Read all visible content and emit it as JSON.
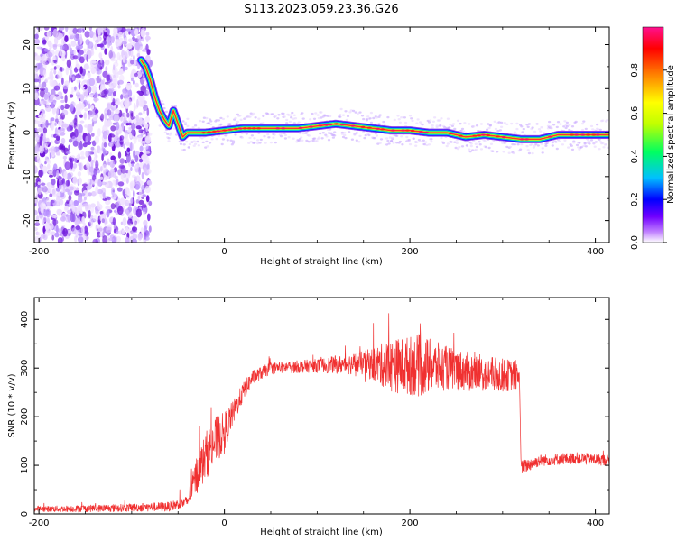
{
  "title": "S113.2023.059.23.36.G26",
  "chart_data": [
    {
      "type": "heatmap",
      "xlabel": "Height of straight line (km)",
      "ylabel": "Frequency (Hz)",
      "xlim": [
        -205,
        415
      ],
      "ylim": [
        -25,
        24
      ],
      "x_ticks": [
        -200,
        0,
        200,
        400
      ],
      "y_ticks": [
        20,
        10,
        0,
        -10,
        -20
      ],
      "colorbar": {
        "label": "Normalized spectral amplitude",
        "range": [
          0,
          1
        ],
        "ticks": [
          0.0,
          0.2,
          0.4,
          0.6,
          0.8
        ],
        "colors": [
          "#ffffff",
          "#c080ff",
          "#7000ff",
          "#0000ff",
          "#00c0ff",
          "#00ff60",
          "#c0ff00",
          "#ffff00",
          "#ff8000",
          "#ff0000",
          "#ff1090"
        ]
      },
      "noise_region_x": [
        -205,
        -80
      ],
      "ridge": {
        "x": [
          -90,
          -85,
          -80,
          -75,
          -70,
          -65,
          -60,
          -55,
          -50,
          -45,
          -40,
          -30,
          -20,
          0,
          20,
          50,
          80,
          100,
          120,
          140,
          160,
          180,
          200,
          220,
          240,
          260,
          280,
          300,
          320,
          340,
          360,
          380,
          400,
          415
        ],
        "y": [
          16.5,
          15,
          12,
          8,
          5,
          3,
          1.5,
          5,
          2,
          -1,
          0,
          0,
          0,
          0.5,
          1,
          1,
          1,
          1.5,
          2,
          1.5,
          1,
          0.5,
          0.5,
          0,
          0,
          -1,
          -0.5,
          -1,
          -1.5,
          -1.5,
          -0.5,
          -0.5,
          -0.5,
          -0.5
        ]
      }
    },
    {
      "type": "line",
      "xlabel": "Height of straight line (km)",
      "ylabel": "SNR (10 * v/v)",
      "xlim": [
        -205,
        415
      ],
      "ylim": [
        0,
        445
      ],
      "x_ticks": [
        -200,
        0,
        200,
        400
      ],
      "y_ticks": [
        0,
        100,
        200,
        300,
        400
      ],
      "color": "#f03030",
      "envelope": [
        {
          "x": -205,
          "mean": 10,
          "noise": 6
        },
        {
          "x": -120,
          "mean": 12,
          "noise": 8
        },
        {
          "x": -60,
          "mean": 15,
          "noise": 10
        },
        {
          "x": -40,
          "mean": 25,
          "noise": 12
        },
        {
          "x": -30,
          "mean": 80,
          "noise": 40
        },
        {
          "x": -20,
          "mean": 120,
          "noise": 50
        },
        {
          "x": -10,
          "mean": 150,
          "noise": 50
        },
        {
          "x": 0,
          "mean": 170,
          "noise": 40
        },
        {
          "x": 10,
          "mean": 210,
          "noise": 25
        },
        {
          "x": 20,
          "mean": 250,
          "noise": 20
        },
        {
          "x": 30,
          "mean": 280,
          "noise": 15
        },
        {
          "x": 50,
          "mean": 300,
          "noise": 12
        },
        {
          "x": 100,
          "mean": 305,
          "noise": 14
        },
        {
          "x": 150,
          "mean": 310,
          "noise": 25
        },
        {
          "x": 180,
          "mean": 305,
          "noise": 55
        },
        {
          "x": 210,
          "mean": 305,
          "noise": 65
        },
        {
          "x": 240,
          "mean": 300,
          "noise": 45
        },
        {
          "x": 270,
          "mean": 290,
          "noise": 40
        },
        {
          "x": 300,
          "mean": 285,
          "noise": 35
        },
        {
          "x": 318,
          "mean": 285,
          "noise": 30
        },
        {
          "x": 320,
          "mean": 95,
          "noise": 15
        },
        {
          "x": 340,
          "mean": 110,
          "noise": 12
        },
        {
          "x": 380,
          "mean": 115,
          "noise": 12
        },
        {
          "x": 415,
          "mean": 110,
          "noise": 12
        }
      ]
    }
  ]
}
